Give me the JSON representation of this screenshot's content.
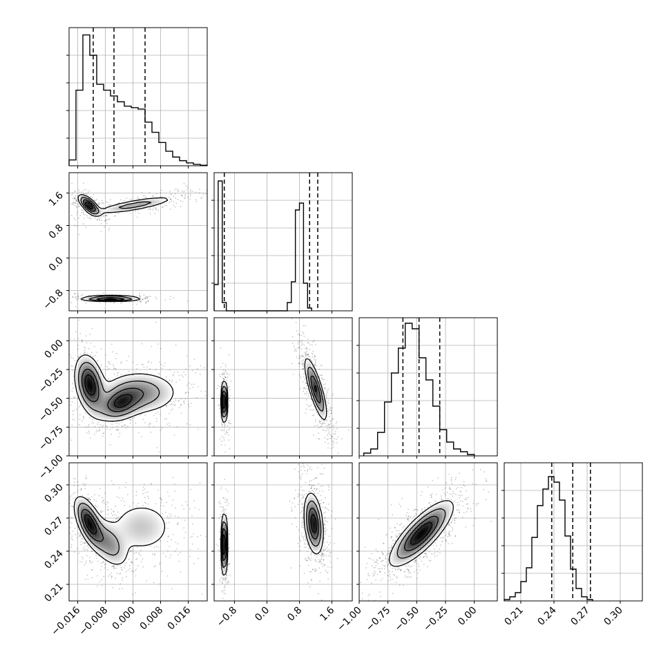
{
  "chart_data": {
    "type": "corner",
    "parameters": [
      {
        "range": [
          -0.0185,
          0.0215
        ],
        "ticks": [
          -0.016,
          -0.008,
          0.0,
          0.008,
          0.016
        ],
        "tick_labels": [
          "−0.016",
          "−0.008",
          "0.000",
          "0.008",
          "0.016"
        ],
        "quantiles": [
          -0.0115,
          -0.0055,
          0.0035
        ],
        "hist_edges_start": -0.0185,
        "hist_bin_width": 0.002,
        "hist_counts": [
          0.04,
          0.52,
          0.9,
          0.76,
          0.56,
          0.52,
          0.48,
          0.44,
          0.41,
          0.4,
          0.39,
          0.3,
          0.23,
          0.16,
          0.1,
          0.06,
          0.035,
          0.02,
          0.01,
          0.004
        ],
        "hist_ylim": [
          0,
          0.95
        ]
      },
      {
        "range": [
          -1.3,
          2.1
        ],
        "ticks": [
          -0.8,
          0.0,
          0.8,
          1.6
        ],
        "tick_labels": [
          "−0.8",
          "0.0",
          "0.8",
          "1.6"
        ],
        "quantiles": [
          -1.05,
          1.05,
          1.25
        ],
        "hist_edges_start": -1.3,
        "hist_bin_width": 0.1,
        "hist_counts": [
          0.19,
          0.94,
          0.06,
          0,
          0,
          0,
          0,
          0,
          0,
          0,
          0,
          0,
          0,
          0,
          0,
          0,
          0,
          0,
          0.06,
          0.21,
          0.73,
          0.78,
          0.2,
          0.02
        ],
        "hist_ylim": [
          0,
          1.0
        ]
      },
      {
        "range": [
          -1.0,
          0.2
        ],
        "ticks": [
          -1.0,
          -0.75,
          -0.5,
          -0.25,
          0.0
        ],
        "tick_labels": [
          "−1.00",
          "−0.75",
          "−0.50",
          "−0.25",
          "0.00"
        ],
        "quantiles": [
          -0.62,
          -0.48,
          -0.3
        ],
        "hist_edges_start": -0.96,
        "hist_bin_width": 0.06,
        "hist_counts": [
          0.02,
          0.05,
          0.17,
          0.39,
          0.6,
          0.78,
          0.96,
          0.92,
          0.71,
          0.55,
          0.36,
          0.19,
          0.1,
          0.05,
          0.03,
          0.01
        ],
        "hist_ylim": [
          0,
          1.0
        ]
      },
      {
        "range": [
          0.195,
          0.32
        ],
        "ticks": [
          0.21,
          0.24,
          0.27,
          0.3
        ],
        "tick_labels": [
          "0.21",
          "0.24",
          "0.27",
          "0.30"
        ],
        "quantiles": [
          0.238,
          0.257,
          0.273
        ],
        "hist_edges_start": 0.195,
        "hist_bin_width": 0.005,
        "hist_counts": [
          0.01,
          0.03,
          0.06,
          0.14,
          0.24,
          0.46,
          0.69,
          0.81,
          0.9,
          0.86,
          0.73,
          0.47,
          0.23,
          0.09,
          0.03,
          0.01
        ],
        "hist_ylim": [
          0,
          1.0
        ]
      }
    ],
    "joint_modes": {
      "1-0": [
        {
          "mx": -0.0127,
          "my": 1.3,
          "sx": 0.0016,
          "sy": 0.13,
          "rho": -0.7,
          "w": 0.3
        },
        {
          "mx": 0.0005,
          "my": 1.3,
          "sx": 0.0065,
          "sy": 0.12,
          "rho": 0.8,
          "w": 0.4
        },
        {
          "mx": -0.0065,
          "my": -1.0,
          "sx": 0.0045,
          "sy": 0.035,
          "rho": 0.0,
          "w": 0.3
        }
      ],
      "2-0": [
        {
          "mx": -0.0125,
          "my": -0.38,
          "sx": 0.0022,
          "sy": 0.13,
          "rho": -0.3,
          "w": 0.35
        },
        {
          "mx": -0.004,
          "my": -0.55,
          "sx": 0.0035,
          "sy": 0.08,
          "rho": 0.3,
          "w": 0.25
        },
        {
          "mx": 0.002,
          "my": -0.45,
          "sx": 0.006,
          "sy": 0.1,
          "rho": 0.0,
          "w": 0.4
        }
      ],
      "2-1": [
        {
          "mx": -1.05,
          "my": -0.53,
          "sx": 0.04,
          "sy": 0.09,
          "rho": 0.0,
          "w": 0.3
        },
        {
          "mx": 1.2,
          "my": -0.42,
          "sx": 0.14,
          "sy": 0.14,
          "rho": -0.8,
          "w": 0.7
        }
      ],
      "3-0": [
        {
          "mx": -0.0127,
          "my": 0.266,
          "sx": 0.0022,
          "sy": 0.012,
          "rho": -0.6,
          "w": 0.35
        },
        {
          "mx": -0.007,
          "my": 0.247,
          "sx": 0.003,
          "sy": 0.012,
          "rho": -0.5,
          "w": 0.25
        },
        {
          "mx": 0.0025,
          "my": 0.262,
          "sx": 0.0055,
          "sy": 0.014,
          "rho": 0.0,
          "w": 0.4
        }
      ],
      "3-1": [
        {
          "mx": -1.05,
          "my": 0.246,
          "sx": 0.04,
          "sy": 0.014,
          "rho": 0.0,
          "w": 0.3
        },
        {
          "mx": 1.15,
          "my": 0.265,
          "sx": 0.12,
          "sy": 0.014,
          "rho": -0.3,
          "w": 0.7
        }
      ],
      "3-2": [
        {
          "mx": -0.46,
          "my": 0.256,
          "sx": 0.14,
          "sy": 0.015,
          "rho": 0.8,
          "w": 1.0
        }
      ]
    },
    "contour_levels": [
      0.118,
      0.393,
      0.675,
      0.865
    ],
    "grid": true,
    "line_color": "#000000",
    "sample_color": "#000000",
    "grid_color": "#b0b0b0"
  }
}
